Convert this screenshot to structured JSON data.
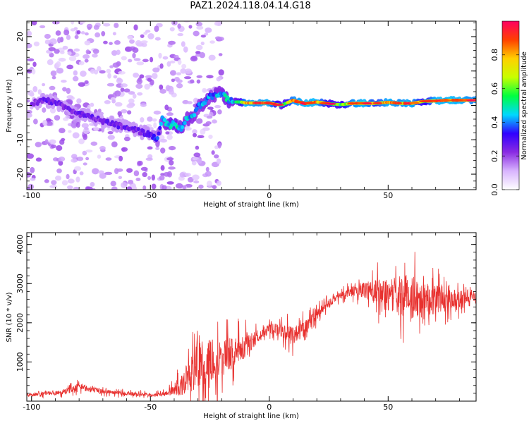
{
  "title": "PAZ1.2024.118.04.14.G18",
  "chart_data": [
    {
      "type": "heatmap",
      "xlabel": "Height of straight line (km)",
      "ylabel": "Frequency (Hz)",
      "xlim": [
        -102,
        87
      ],
      "ylim": [
        -24.5,
        24.5
      ],
      "xticks": [
        -100,
        -50,
        0,
        50
      ],
      "yticks": [
        -20,
        -10,
        0,
        10,
        20
      ],
      "grid": false,
      "colorbar": {
        "label": "Normalized spectral amplitude",
        "range": [
          0,
          1
        ],
        "ticks": [
          "0.0",
          "0.2",
          "0.4",
          "0.6",
          "0.8"
        ],
        "ticks_values": [
          0.0,
          0.2,
          0.4,
          0.6,
          0.8
        ],
        "colors": [
          "#ffffff",
          "#d8b4fe",
          "#8a2be2",
          "#3000ff",
          "#00d8ff",
          "#00ff40",
          "#c8ff00",
          "#ffd000",
          "#ff4000",
          "#ff0060"
        ]
      },
      "ridge": {
        "x": [
          -100,
          -95,
          -90,
          -85,
          -80,
          -75,
          -70,
          -65,
          -60,
          -55,
          -50,
          -47,
          -45,
          -42,
          -40,
          -37,
          -35,
          -32,
          -30,
          -27,
          -25,
          -22,
          -20,
          -17,
          -15,
          -12,
          -10,
          -5,
          0,
          5,
          10,
          15,
          20,
          25,
          30,
          35,
          40,
          45,
          50,
          55,
          60,
          65,
          70,
          75,
          80,
          85
        ],
        "y": [
          0.5,
          1.5,
          1.0,
          -1.0,
          -2.5,
          -3.5,
          -4.5,
          -5.5,
          -6.5,
          -7.5,
          -8.5,
          -10.0,
          -4.0,
          -6.0,
          -5.0,
          -7.0,
          -4.0,
          -3.0,
          -0.5,
          1.0,
          2.5,
          3.0,
          3.5,
          1.5,
          1.0,
          1.0,
          0.7,
          0.7,
          0.7,
          0.0,
          1.5,
          0.5,
          1.0,
          0.5,
          0.2,
          0.6,
          0.6,
          0.6,
          0.9,
          0.6,
          0.6,
          1.2,
          1.3,
          1.5,
          1.5,
          1.5
        ],
        "amplitude": [
          0.25,
          0.3,
          0.3,
          0.28,
          0.3,
          0.3,
          0.28,
          0.3,
          0.3,
          0.3,
          0.32,
          0.4,
          0.45,
          0.55,
          0.6,
          0.5,
          0.5,
          0.5,
          0.45,
          0.5,
          0.45,
          0.5,
          0.5,
          0.55,
          0.5,
          0.7,
          0.95,
          0.9,
          0.95,
          0.6,
          0.9,
          0.95,
          0.95,
          0.7,
          0.7,
          0.9,
          0.95,
          0.8,
          0.95,
          0.9,
          0.95,
          0.7,
          0.95,
          0.95,
          0.95,
          0.9
        ]
      },
      "noise": {
        "x_range": [
          -102,
          -20
        ],
        "level": 0.15
      }
    },
    {
      "type": "line",
      "xlabel": "Height of straight line (km)",
      "ylabel": "SNR (10 * v/v)",
      "xlim": [
        -102,
        87
      ],
      "ylim": [
        0,
        4300
      ],
      "xticks": [
        -100,
        -50,
        0,
        50
      ],
      "yticks": [
        1000,
        2000,
        3000,
        4000
      ],
      "grid": false,
      "color": "#e8312f",
      "envelope": {
        "x": [
          -102,
          -95,
          -90,
          -85,
          -80,
          -75,
          -70,
          -65,
          -60,
          -55,
          -50,
          -47,
          -45,
          -42,
          -40,
          -37,
          -35,
          -32,
          -30,
          -25,
          -20,
          -15,
          -10,
          -5,
          0,
          5,
          10,
          15,
          20,
          25,
          30,
          35,
          40,
          45,
          50,
          55,
          60,
          65,
          70,
          75,
          80,
          85,
          87
        ],
        "base": [
          150,
          200,
          200,
          260,
          380,
          300,
          250,
          220,
          190,
          180,
          160,
          160,
          180,
          220,
          300,
          400,
          550,
          750,
          900,
          1000,
          1100,
          1250,
          1400,
          1650,
          1850,
          1800,
          1700,
          1850,
          2200,
          2500,
          2700,
          2800,
          2850,
          2800,
          2700,
          2700,
          2650,
          2700,
          2600,
          2650,
          2600,
          2700,
          2600
        ],
        "noise_amplitude": [
          70,
          80,
          90,
          120,
          160,
          120,
          100,
          90,
          80,
          80,
          70,
          80,
          90,
          150,
          250,
          450,
          700,
          900,
          1000,
          950,
          800,
          650,
          500,
          300,
          200,
          300,
          400,
          350,
          250,
          180,
          150,
          200,
          350,
          550,
          650,
          850,
          900,
          850,
          650,
          500,
          400,
          250,
          250
        ]
      }
    }
  ]
}
